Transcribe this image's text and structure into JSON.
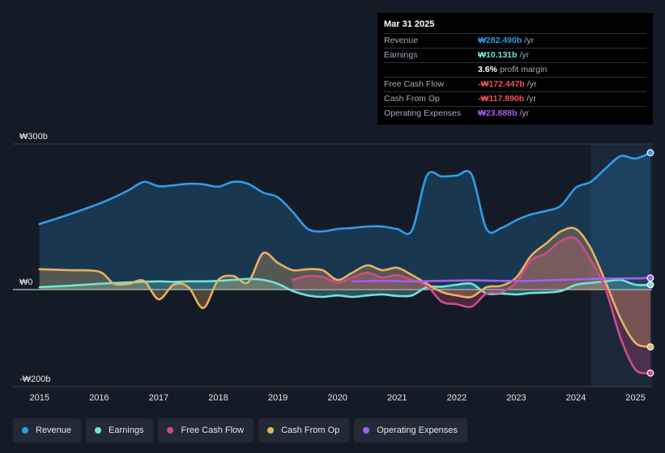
{
  "tooltip": {
    "date": "Mar 31 2025",
    "rows": [
      {
        "label": "Revenue",
        "value": "₩282.490b",
        "unit": "/yr",
        "color": "#2f9ce8"
      },
      {
        "label": "Earnings",
        "value": "₩10.131b",
        "unit": "/yr",
        "color": "#6ee6d6"
      },
      {
        "label": "",
        "value": "3.6%",
        "unit": "profit margin",
        "color": "#ffffff"
      },
      {
        "label": "Free Cash Flow",
        "value": "-₩172.447b",
        "unit": "/yr",
        "color": "#f25252"
      },
      {
        "label": "Cash From Op",
        "value": "-₩117.890b",
        "unit": "/yr",
        "color": "#f25252"
      },
      {
        "label": "Operating Expenses",
        "value": "₩23.888b",
        "unit": "/yr",
        "color": "#a35ff0"
      }
    ]
  },
  "legend": [
    {
      "label": "Revenue",
      "color": "#2f9ce8"
    },
    {
      "label": "Earnings",
      "color": "#6ee6d6"
    },
    {
      "label": "Free Cash Flow",
      "color": "#d14a86"
    },
    {
      "label": "Cash From Op",
      "color": "#e8b062"
    },
    {
      "label": "Operating Expenses",
      "color": "#a35ff0"
    }
  ],
  "chart_data": {
    "type": "line",
    "title": "",
    "xlabel": "",
    "ylabel": "",
    "xlim": [
      2014.99,
      2025.25
    ],
    "ylim": [
      -200,
      300
    ],
    "y_ticks": [
      {
        "value": 300,
        "label": "₩300b"
      },
      {
        "value": 0,
        "label": "₩0"
      },
      {
        "value": -200,
        "label": "-₩200b"
      }
    ],
    "x_ticks": [
      "2015",
      "2016",
      "2017",
      "2018",
      "2019",
      "2020",
      "2021",
      "2022",
      "2023",
      "2024",
      "2025"
    ],
    "highlight_from": 2024.25,
    "series": [
      {
        "name": "Revenue",
        "color": "#2f9ce8",
        "fill": true,
        "points": [
          [
            2015,
            135
          ],
          [
            2015.5,
            155
          ],
          [
            2016,
            177
          ],
          [
            2016.25,
            190
          ],
          [
            2016.5,
            205
          ],
          [
            2016.75,
            222
          ],
          [
            2017,
            213
          ],
          [
            2017.25,
            215
          ],
          [
            2017.5,
            218
          ],
          [
            2017.75,
            217
          ],
          [
            2018,
            212
          ],
          [
            2018.25,
            222
          ],
          [
            2018.5,
            218
          ],
          [
            2018.75,
            200
          ],
          [
            2019,
            190
          ],
          [
            2019.25,
            160
          ],
          [
            2019.5,
            125
          ],
          [
            2019.75,
            120
          ],
          [
            2020,
            125
          ],
          [
            2020.25,
            127
          ],
          [
            2020.5,
            130
          ],
          [
            2020.75,
            130
          ],
          [
            2021,
            125
          ],
          [
            2021.25,
            122
          ],
          [
            2021.5,
            235
          ],
          [
            2021.75,
            233
          ],
          [
            2022,
            235
          ],
          [
            2022.25,
            237
          ],
          [
            2022.5,
            125
          ],
          [
            2022.75,
            127
          ],
          [
            2023,
            143
          ],
          [
            2023.25,
            155
          ],
          [
            2023.5,
            162
          ],
          [
            2023.75,
            173
          ],
          [
            2024,
            210
          ],
          [
            2024.25,
            222
          ],
          [
            2024.5,
            250
          ],
          [
            2024.75,
            275
          ],
          [
            2025,
            270
          ],
          [
            2025.25,
            282
          ]
        ]
      },
      {
        "name": "Earnings",
        "color": "#6ee6d6",
        "fill": true,
        "points": [
          [
            2015,
            5
          ],
          [
            2015.5,
            8
          ],
          [
            2016,
            12
          ],
          [
            2016.5,
            15
          ],
          [
            2017,
            17
          ],
          [
            2017.25,
            16
          ],
          [
            2017.5,
            17
          ],
          [
            2017.75,
            17
          ],
          [
            2018,
            18
          ],
          [
            2018.25,
            20
          ],
          [
            2018.5,
            22
          ],
          [
            2018.75,
            20
          ],
          [
            2019,
            12
          ],
          [
            2019.25,
            -3
          ],
          [
            2019.5,
            -12
          ],
          [
            2019.75,
            -15
          ],
          [
            2020,
            -12
          ],
          [
            2020.25,
            -15
          ],
          [
            2020.5,
            -12
          ],
          [
            2020.75,
            -10
          ],
          [
            2021,
            -13
          ],
          [
            2021.25,
            -12
          ],
          [
            2021.5,
            5
          ],
          [
            2021.75,
            6
          ],
          [
            2022,
            10
          ],
          [
            2022.25,
            12
          ],
          [
            2022.5,
            -8
          ],
          [
            2022.75,
            -8
          ],
          [
            2023,
            -10
          ],
          [
            2023.25,
            -7
          ],
          [
            2023.5,
            -6
          ],
          [
            2023.75,
            -3
          ],
          [
            2024,
            10
          ],
          [
            2024.25,
            14
          ],
          [
            2024.5,
            17
          ],
          [
            2024.75,
            20
          ],
          [
            2025,
            10
          ],
          [
            2025.25,
            10
          ]
        ]
      },
      {
        "name": "Free Cash Flow",
        "color": "#d14a86",
        "fill": true,
        "points": [
          [
            2019.25,
            20
          ],
          [
            2019.5,
            28
          ],
          [
            2019.75,
            26
          ],
          [
            2020,
            15
          ],
          [
            2020.25,
            25
          ],
          [
            2020.5,
            35
          ],
          [
            2020.75,
            25
          ],
          [
            2021,
            30
          ],
          [
            2021.25,
            20
          ],
          [
            2021.5,
            8
          ],
          [
            2021.75,
            -25
          ],
          [
            2022,
            -30
          ],
          [
            2022.25,
            -35
          ],
          [
            2022.5,
            -8
          ],
          [
            2022.75,
            -5
          ],
          [
            2023,
            15
          ],
          [
            2023.25,
            60
          ],
          [
            2023.5,
            75
          ],
          [
            2023.75,
            100
          ],
          [
            2024,
            105
          ],
          [
            2024.25,
            60
          ],
          [
            2024.5,
            0
          ],
          [
            2024.75,
            -100
          ],
          [
            2025,
            -165
          ],
          [
            2025.25,
            -172
          ]
        ]
      },
      {
        "name": "Cash From Op",
        "color": "#e8b062",
        "fill": true,
        "points": [
          [
            2015,
            42
          ],
          [
            2015.5,
            40
          ],
          [
            2016,
            37
          ],
          [
            2016.25,
            12
          ],
          [
            2016.5,
            12
          ],
          [
            2016.75,
            18
          ],
          [
            2017,
            -20
          ],
          [
            2017.25,
            10
          ],
          [
            2017.5,
            5
          ],
          [
            2017.75,
            -38
          ],
          [
            2018,
            20
          ],
          [
            2018.25,
            28
          ],
          [
            2018.5,
            15
          ],
          [
            2018.75,
            75
          ],
          [
            2019,
            55
          ],
          [
            2019.25,
            40
          ],
          [
            2019.5,
            42
          ],
          [
            2019.75,
            40
          ],
          [
            2020,
            20
          ],
          [
            2020.25,
            35
          ],
          [
            2020.5,
            50
          ],
          [
            2020.75,
            40
          ],
          [
            2021,
            45
          ],
          [
            2021.25,
            30
          ],
          [
            2021.5,
            12
          ],
          [
            2021.75,
            -5
          ],
          [
            2022,
            -12
          ],
          [
            2022.25,
            -15
          ],
          [
            2022.5,
            5
          ],
          [
            2022.75,
            8
          ],
          [
            2023,
            25
          ],
          [
            2023.25,
            70
          ],
          [
            2023.5,
            95
          ],
          [
            2023.75,
            120
          ],
          [
            2024,
            125
          ],
          [
            2024.25,
            85
          ],
          [
            2024.5,
            15
          ],
          [
            2024.75,
            -60
          ],
          [
            2025,
            -110
          ],
          [
            2025.25,
            -118
          ]
        ]
      },
      {
        "name": "Operating Expenses",
        "color": "#a35ff0",
        "fill": false,
        "points": [
          [
            2020.25,
            17
          ],
          [
            2020.75,
            18
          ],
          [
            2021.25,
            17
          ],
          [
            2021.75,
            18
          ],
          [
            2022.25,
            19
          ],
          [
            2022.75,
            18
          ],
          [
            2023.25,
            18
          ],
          [
            2023.75,
            20
          ],
          [
            2024.25,
            22
          ],
          [
            2024.75,
            23
          ],
          [
            2025,
            23
          ],
          [
            2025.25,
            24
          ]
        ]
      }
    ]
  }
}
